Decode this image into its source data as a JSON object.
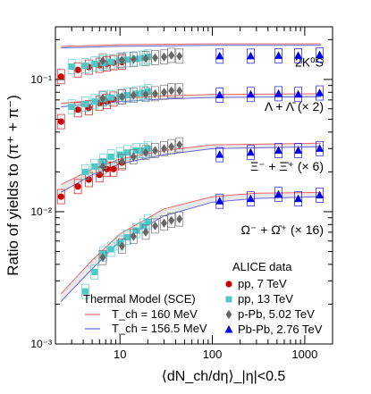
{
  "chart_data": {
    "type": "scatter",
    "title": "",
    "xlabel": "⟨dN_ch/dη⟩_|η|<0.5",
    "ylabel": "Ratio of yields to (π⁺ + π⁻)",
    "xscale": "log",
    "yscale": "log",
    "xlim": [
      2,
      2000
    ],
    "ylim": [
      0.001,
      0.25
    ],
    "x_tick_labels": [
      "10",
      "100",
      "1000"
    ],
    "y_tick_labels": [
      "10⁻³",
      "10⁻²",
      "10⁻¹"
    ],
    "grid": false,
    "groups": [
      {
        "label": "2K⁰S",
        "model_160": [
          [
            2.3,
            0.178
          ],
          [
            10,
            0.183
          ],
          [
            100,
            0.186
          ],
          [
            1500,
            0.186
          ]
        ],
        "model_156": [
          [
            2.3,
            0.173
          ],
          [
            10,
            0.178
          ],
          [
            100,
            0.181
          ],
          [
            1500,
            0.181
          ]
        ]
      },
      {
        "label": "Λ + Λ̄ (× 2)",
        "model_160": [
          [
            2.3,
            0.066
          ],
          [
            10,
            0.072
          ],
          [
            30,
            0.075
          ],
          [
            100,
            0.077
          ],
          [
            1500,
            0.078
          ]
        ],
        "model_156": [
          [
            2.3,
            0.062
          ],
          [
            10,
            0.068
          ],
          [
            30,
            0.071
          ],
          [
            100,
            0.073
          ],
          [
            1500,
            0.074
          ]
        ]
      },
      {
        "label": "Ξ⁻ + Ξ̄⁺ (× 6)",
        "model_160": [
          [
            2.3,
            0.016
          ],
          [
            5,
            0.021
          ],
          [
            10,
            0.025
          ],
          [
            30,
            0.029
          ],
          [
            100,
            0.032
          ],
          [
            1500,
            0.033
          ]
        ],
        "model_156": [
          [
            2.3,
            0.014
          ],
          [
            5,
            0.019
          ],
          [
            10,
            0.023
          ],
          [
            30,
            0.027
          ],
          [
            100,
            0.03
          ],
          [
            1500,
            0.031
          ]
        ]
      },
      {
        "label": "Ω⁻ + Ω̄⁺ (× 16)",
        "model_160": [
          [
            2.3,
            0.0024
          ],
          [
            5,
            0.0043
          ],
          [
            10,
            0.0068
          ],
          [
            30,
            0.0105
          ],
          [
            100,
            0.013
          ],
          [
            300,
            0.0138
          ],
          [
            1500,
            0.014
          ]
        ],
        "model_156": [
          [
            2.3,
            0.0021
          ],
          [
            5,
            0.0037
          ],
          [
            10,
            0.006
          ],
          [
            30,
            0.0093
          ],
          [
            100,
            0.0118
          ],
          [
            300,
            0.0126
          ],
          [
            1500,
            0.013
          ]
        ]
      }
    ],
    "series": [
      {
        "name": "pp, 7 TeV",
        "color": "#cc0000",
        "marker": "circle",
        "points": [
          [
            2.3,
            0.105
          ],
          [
            3.5,
            0.118
          ],
          [
            4.6,
            0.124
          ],
          [
            6.0,
            0.128
          ],
          [
            7.2,
            0.131
          ],
          [
            8.5,
            0.134
          ],
          [
            10.5,
            0.135
          ],
          [
            2.3,
            0.048
          ],
          [
            3.5,
            0.059
          ],
          [
            4.6,
            0.061
          ],
          [
            6.0,
            0.066
          ],
          [
            7.2,
            0.068
          ],
          [
            8.5,
            0.071
          ],
          [
            10.5,
            0.074
          ],
          [
            2.3,
            0.013
          ],
          [
            3.5,
            0.0155
          ],
          [
            4.6,
            0.0175
          ],
          [
            6.0,
            0.019
          ],
          [
            7.2,
            0.021
          ],
          [
            8.5,
            0.021
          ],
          [
            10.5,
            0.0235
          ]
        ]
      },
      {
        "name": "pp, 13 TeV",
        "color": "#4fc8c8",
        "marker": "square",
        "points": [
          [
            3.0,
            0.125
          ],
          [
            4.2,
            0.127
          ],
          [
            5.3,
            0.131
          ],
          [
            6.6,
            0.133
          ],
          [
            8.0,
            0.136
          ],
          [
            10.0,
            0.139
          ],
          [
            12.0,
            0.141
          ],
          [
            15.0,
            0.143
          ],
          [
            18.0,
            0.145
          ],
          [
            20.0,
            0.148
          ],
          [
            3.0,
            0.062
          ],
          [
            4.2,
            0.065
          ],
          [
            5.3,
            0.068
          ],
          [
            6.6,
            0.071
          ],
          [
            8.0,
            0.073
          ],
          [
            10.0,
            0.074
          ],
          [
            12.0,
            0.076
          ],
          [
            15.0,
            0.078
          ],
          [
            18.0,
            0.079
          ],
          [
            20.0,
            0.081
          ],
          [
            4.2,
            0.02
          ],
          [
            5.3,
            0.022
          ],
          [
            6.6,
            0.024
          ],
          [
            8.0,
            0.026
          ],
          [
            10.0,
            0.027
          ],
          [
            12.0,
            0.028
          ],
          [
            15.0,
            0.029
          ],
          [
            18.0,
            0.029
          ],
          [
            20.0,
            0.03
          ],
          [
            4.2,
            0.0025
          ],
          [
            5.3,
            0.0035
          ],
          [
            6.6,
            0.0048
          ],
          [
            8.0,
            0.0052
          ],
          [
            10.0,
            0.0058
          ],
          [
            12.0,
            0.0064
          ],
          [
            15.0,
            0.0072
          ],
          [
            18.0,
            0.0078
          ],
          [
            20.0,
            0.0084
          ]
        ]
      },
      {
        "name": "p-Pb, 5.02 TeV",
        "color": "#666666",
        "marker": "diamond",
        "points": [
          [
            6.5,
            0.138
          ],
          [
            10.5,
            0.14
          ],
          [
            14.0,
            0.142
          ],
          [
            19.0,
            0.144
          ],
          [
            24.0,
            0.146
          ],
          [
            30.0,
            0.148
          ],
          [
            36.0,
            0.152
          ],
          [
            44.0,
            0.15
          ],
          [
            6.5,
            0.072
          ],
          [
            10.5,
            0.074
          ],
          [
            14.0,
            0.076
          ],
          [
            19.0,
            0.077
          ],
          [
            24.0,
            0.078
          ],
          [
            30.0,
            0.08
          ],
          [
            36.0,
            0.082
          ],
          [
            44.0,
            0.082
          ],
          [
            6.5,
            0.022
          ],
          [
            10.5,
            0.024
          ],
          [
            14.0,
            0.026
          ],
          [
            19.0,
            0.028
          ],
          [
            24.0,
            0.029
          ],
          [
            30.0,
            0.03
          ],
          [
            36.0,
            0.031
          ],
          [
            44.0,
            0.032
          ],
          [
            6.5,
            0.0045
          ],
          [
            10.5,
            0.0055
          ],
          [
            14.0,
            0.0065
          ],
          [
            19.0,
            0.007
          ],
          [
            24.0,
            0.0078
          ],
          [
            30.0,
            0.0082
          ],
          [
            36.0,
            0.0086
          ],
          [
            44.0,
            0.0088
          ]
        ]
      },
      {
        "name": "Pb-Pb, 2.76 TeV",
        "color": "#0000ee",
        "marker": "triangle",
        "points": [
          [
            120,
            0.15
          ],
          [
            260,
            0.15
          ],
          [
            520,
            0.151
          ],
          [
            850,
            0.151
          ],
          [
            1450,
            0.153
          ],
          [
            120,
            0.076
          ],
          [
            260,
            0.077
          ],
          [
            520,
            0.078
          ],
          [
            850,
            0.077
          ],
          [
            1450,
            0.079
          ],
          [
            120,
            0.027
          ],
          [
            260,
            0.028
          ],
          [
            520,
            0.029
          ],
          [
            850,
            0.029
          ],
          [
            1450,
            0.03
          ],
          [
            120,
            0.012
          ],
          [
            260,
            0.0125
          ],
          [
            520,
            0.0135
          ],
          [
            850,
            0.0125
          ],
          [
            1450,
            0.0133
          ]
        ]
      }
    ],
    "legend": {
      "data_header": "ALICE data",
      "data_entries": [
        "pp, 7 TeV",
        "pp, 13 TeV",
        "p-Pb, 5.02 TeV",
        "Pb-Pb, 2.76 TeV"
      ],
      "model_header": "Thermal Model (SCE)",
      "model_entries": [
        {
          "label": "T_ch = 160 MeV",
          "color": "#ee6666"
        },
        {
          "label": "T_ch = 156.5 MeV",
          "color": "#6666dd"
        }
      ],
      "placement": "bottom-right"
    }
  }
}
